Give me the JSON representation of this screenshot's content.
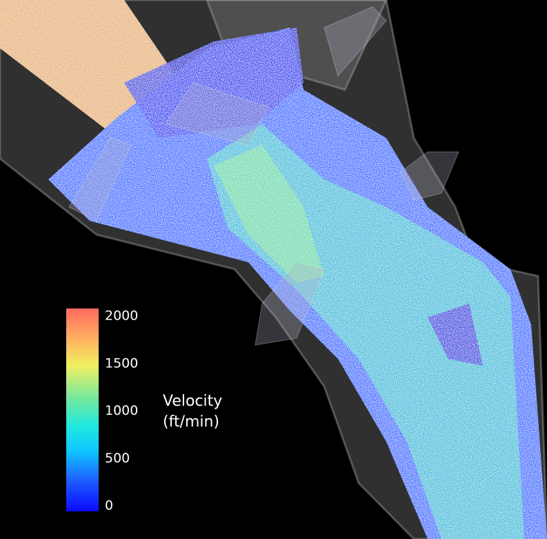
{
  "colorbar": {
    "title_lines": [
      "Velocity",
      "(ft/min)"
    ],
    "range": [
      0,
      2000
    ],
    "ticks": [
      0,
      500,
      1000,
      1500,
      2000
    ]
  }
}
